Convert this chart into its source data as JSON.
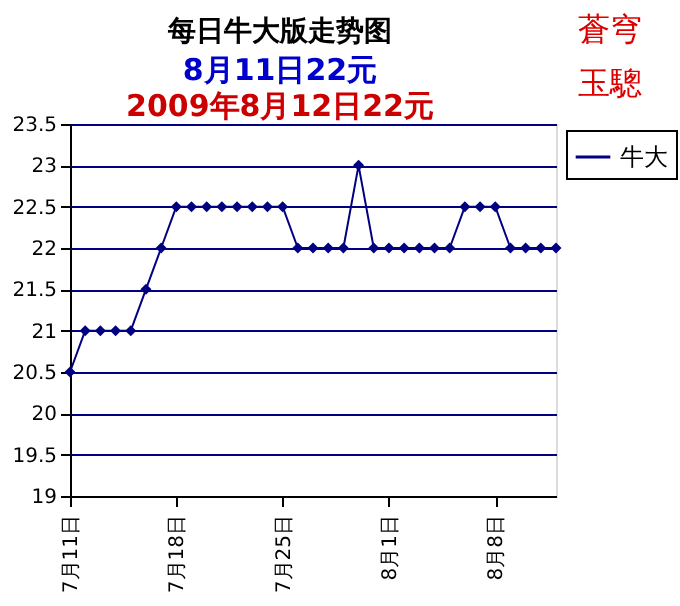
{
  "chart_data": {
    "type": "line",
    "title": "每日牛大版走势图",
    "subtitle": "8月11日22元",
    "annotations": [
      "2009年8月12日22元",
      "蒼穹",
      "玉驄"
    ],
    "x": [
      "2009-07-11",
      "2009-07-12",
      "2009-07-13",
      "2009-07-14",
      "2009-07-15",
      "2009-07-16",
      "2009-07-17",
      "2009-07-18",
      "2009-07-19",
      "2009-07-20",
      "2009-07-21",
      "2009-07-22",
      "2009-07-23",
      "2009-07-24",
      "2009-07-25",
      "2009-07-26",
      "2009-07-27",
      "2009-07-28",
      "2009-07-29",
      "2009-07-30",
      "2009-07-31",
      "2009-08-01",
      "2009-08-02",
      "2009-08-03",
      "2009-08-04",
      "2009-08-05",
      "2009-08-06",
      "2009-08-07",
      "2009-08-08",
      "2009-08-09",
      "2009-08-10",
      "2009-08-11",
      "2009-08-12"
    ],
    "series": [
      {
        "name": "牛大",
        "color": "#000080",
        "values": [
          20.5,
          21,
          21,
          21,
          21,
          21.5,
          22,
          22.5,
          22.5,
          22.5,
          22.5,
          22.5,
          22.5,
          22.5,
          22.5,
          22,
          22,
          22,
          22,
          23,
          22,
          22,
          22,
          22,
          22,
          22,
          22.5,
          22.5,
          22.5,
          22,
          22,
          22,
          22
        ]
      }
    ],
    "xlim": [
      "2009-07-11",
      "2009-08-12"
    ],
    "xticks": [
      {
        "value": "2009-07-11",
        "label": "7月11日"
      },
      {
        "value": "2009-07-18",
        "label": "7月18日"
      },
      {
        "value": "2009-07-25",
        "label": "7月25日"
      },
      {
        "value": "2009-08-01",
        "label": "8月1日"
      },
      {
        "value": "2009-08-08",
        "label": "8月8日"
      }
    ],
    "ylim": [
      19,
      23.5
    ],
    "yticks": [
      19,
      19.5,
      20,
      20.5,
      21,
      21.5,
      22,
      22.5,
      23,
      23.5
    ],
    "grid": "y",
    "legend": "right",
    "marker": "diamond",
    "line_style": "solid"
  }
}
